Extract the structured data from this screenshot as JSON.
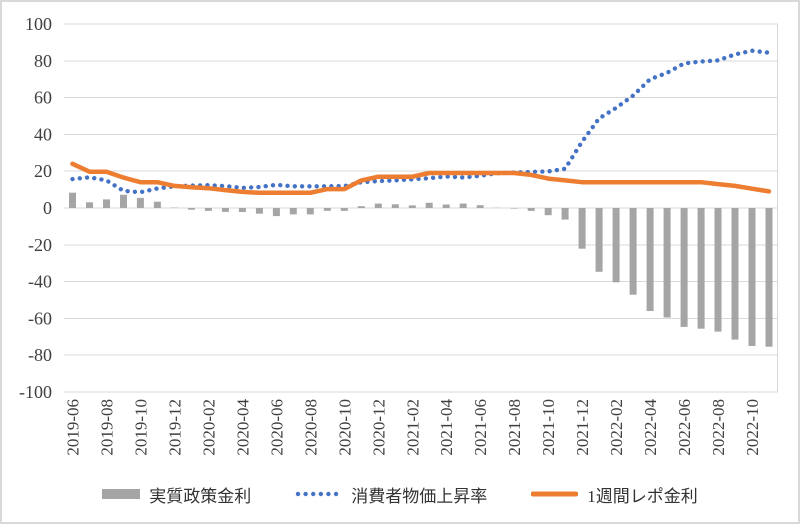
{
  "chart_data": {
    "type": "combo",
    "title": "",
    "xlabel": "",
    "ylabel": "",
    "ylim": [
      -100,
      100
    ],
    "y_ticks": [
      100,
      80,
      60,
      40,
      20,
      0,
      -20,
      -40,
      -60,
      -80,
      -100
    ],
    "grid": true,
    "gridline_color": "#D9D9D9",
    "axis_text_color": "#404040",
    "legend_position": "bottom",
    "x_label_every": 2,
    "x": [
      "2019-06",
      "2019-07",
      "2019-08",
      "2019-09",
      "2019-10",
      "2019-11",
      "2019-12",
      "2020-01",
      "2020-02",
      "2020-03",
      "2020-04",
      "2020-05",
      "2020-06",
      "2020-07",
      "2020-08",
      "2020-09",
      "2020-10",
      "2020-11",
      "2020-12",
      "2021-01",
      "2021-02",
      "2021-03",
      "2021-04",
      "2021-05",
      "2021-06",
      "2021-07",
      "2021-08",
      "2021-09",
      "2021-10",
      "2021-11",
      "2021-12",
      "2022-01",
      "2022-02",
      "2022-03",
      "2022-04",
      "2022-05",
      "2022-06",
      "2022-07",
      "2022-08",
      "2022-09",
      "2022-10",
      "2022-11"
    ],
    "series": [
      {
        "name": "実質政策金利",
        "type": "bar",
        "color": "#A5A5A5",
        "values": [
          8.3,
          3.1,
          4.7,
          7.2,
          5.5,
          3.4,
          0.2,
          -0.9,
          -1.6,
          -2.1,
          -2.2,
          -3.1,
          -4.4,
          -3.5,
          -3.5,
          -1.5,
          -1.6,
          1.0,
          2.4,
          2.0,
          1.4,
          2.8,
          1.9,
          2.4,
          1.5,
          0.1,
          -0.3,
          -1.6,
          -3.9,
          -6.3,
          -22.1,
          -34.7,
          -40.4,
          -47.1,
          -56.0,
          -59.5,
          -64.6,
          -65.6,
          -67.2,
          -71.5,
          -75.0,
          -75.4
        ]
      },
      {
        "name": "消費者物価上昇率",
        "type": "dotted-line",
        "color": "#4472C4",
        "values": [
          15.7,
          16.7,
          15.0,
          9.3,
          8.6,
          10.6,
          11.8,
          12.2,
          12.4,
          11.9,
          10.9,
          11.4,
          12.6,
          11.8,
          11.8,
          11.8,
          11.9,
          14.0,
          14.6,
          15.0,
          15.6,
          16.2,
          17.1,
          16.6,
          17.5,
          18.9,
          19.3,
          19.6,
          19.9,
          21.3,
          36.1,
          48.7,
          54.4,
          61.1,
          70.0,
          73.5,
          78.6,
          79.6,
          80.2,
          83.5,
          85.5,
          84.4
        ]
      },
      {
        "name": "1週間レポ金利",
        "type": "line",
        "color": "#ED7D31",
        "values": [
          24,
          19.75,
          19.75,
          16.5,
          14,
          14,
          12,
          11.25,
          10.75,
          9.75,
          8.75,
          8.25,
          8.25,
          8.25,
          8.25,
          10.25,
          10.25,
          15,
          17,
          17,
          17,
          19,
          19,
          19,
          19,
          19,
          19,
          18,
          16,
          15,
          14,
          14,
          14,
          14,
          14,
          14,
          14,
          14,
          13,
          12,
          10.5,
          9
        ]
      }
    ]
  }
}
